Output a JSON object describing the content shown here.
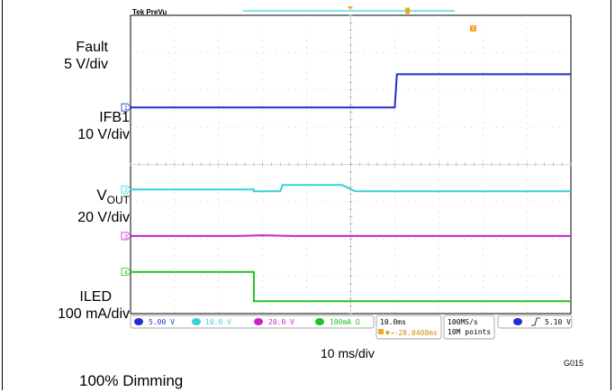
{
  "chart_data": {
    "type": "line",
    "instrument": "Tek PreVu",
    "x_label": "10 ms/div",
    "time_per_div_ms": 10,
    "divisions": {
      "x": 10,
      "y": 8
    },
    "series": [
      {
        "name": "Fault",
        "scale": "5 V/div",
        "color": "#1f2ecc",
        "channel": "1",
        "points": [
          [
            0,
            5.53
          ],
          [
            6.0,
            5.53
          ],
          [
            6.05,
            6.42
          ],
          [
            10,
            6.42
          ]
        ]
      },
      {
        "name": "IFB1",
        "scale": "10 V/div",
        "color": "#35d2d8",
        "channel": "2",
        "points": [
          [
            0,
            3.33
          ],
          [
            2.8,
            3.33
          ],
          [
            2.8,
            3.28
          ],
          [
            3.4,
            3.28
          ],
          [
            3.45,
            3.45
          ],
          [
            4.8,
            3.45
          ],
          [
            5.1,
            3.28
          ],
          [
            10,
            3.28
          ]
        ]
      },
      {
        "name": "VOUT",
        "scale": "20 V/div",
        "color": "#cc22cc",
        "channel": "3",
        "points": [
          [
            0,
            2.08
          ],
          [
            2.4,
            2.08
          ],
          [
            3.0,
            2.1
          ],
          [
            3.7,
            2.08
          ],
          [
            10,
            2.08
          ]
        ]
      },
      {
        "name": "ILED",
        "scale": "100 mA/div",
        "color": "#22c222",
        "channel": "4",
        "points": [
          [
            0,
            1.12
          ],
          [
            2.8,
            1.12
          ],
          [
            2.8,
            0.33
          ],
          [
            10,
            0.33
          ]
        ]
      }
    ]
  },
  "labels": {
    "fault_name": "Fault",
    "fault_scale": "5 V/div",
    "ifb_name": "IFB1",
    "ifb_scale": "10 V/div",
    "vout_main": "V",
    "vout_sub": "OUT",
    "vout_scale": "20 V/div",
    "iled_name": "ILED",
    "iled_scale": "100 mA/div"
  },
  "status_bar": {
    "ch1": "5.00 V",
    "ch2": "10.0 V",
    "ch3": "20.0 V",
    "ch4": "100mA Ω",
    "timebase": "10.0ms",
    "trigger_pos": "▼→-28.0400ms",
    "samplerate": "100MS/s",
    "points": "10M points",
    "trigger_level": "5.10 V",
    "trigger_ch": "1"
  },
  "figure_id": "G015",
  "caption": "100% Dimming"
}
